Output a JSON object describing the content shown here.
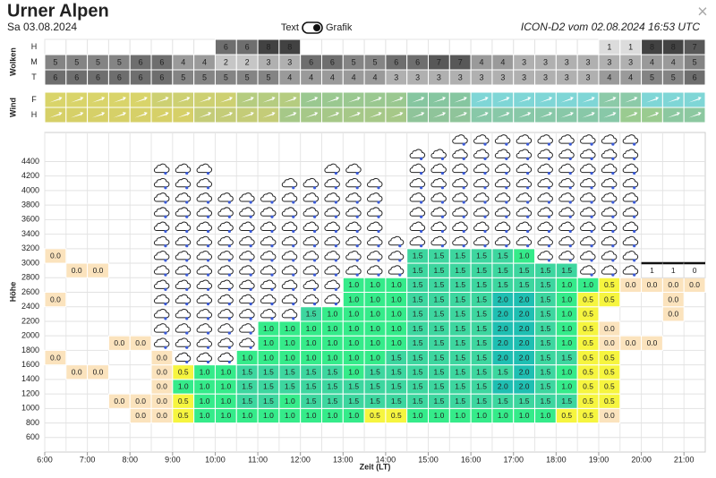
{
  "header": {
    "title": "Urner Alpen",
    "date": "Sa 03.08.2024",
    "toggle_left": "Text",
    "toggle_right": "Grafik",
    "model": "ICON-D2 vom 02.08.2024 16:53 UTC",
    "close": "×"
  },
  "clouds": {
    "label": "Wolken",
    "rows": [
      {
        "label": "H",
        "values": [
          null,
          null,
          null,
          null,
          null,
          null,
          null,
          null,
          6,
          6,
          8,
          8,
          null,
          null,
          null,
          null,
          null,
          null,
          null,
          null,
          null,
          null,
          null,
          null,
          null,
          null,
          1,
          1,
          8,
          8,
          7
        ]
      },
      {
        "label": "M",
        "values": [
          5,
          5,
          5,
          5,
          6,
          6,
          4,
          4,
          2,
          2,
          3,
          3,
          6,
          6,
          5,
          5,
          6,
          6,
          7,
          7,
          4,
          4,
          3,
          3,
          3,
          3,
          3,
          3,
          4,
          4,
          5
        ]
      },
      {
        "label": "T",
        "values": [
          6,
          6,
          6,
          6,
          6,
          6,
          5,
          5,
          5,
          5,
          5,
          4,
          4,
          4,
          4,
          4,
          3,
          3,
          3,
          3,
          3,
          3,
          3,
          3,
          3,
          3,
          4,
          4,
          5,
          5,
          6
        ]
      }
    ]
  },
  "wind": {
    "label": "Wind",
    "rows": [
      {
        "label": "F",
        "colors": [
          "#d9d46a",
          "#d9d46a",
          "#d9d46a",
          "#d9d46a",
          "#d9d46a",
          "#cdd072",
          "#cdd072",
          "#cdd072",
          "#cdd072",
          "#b5cc80",
          "#b5cc80",
          "#b5cc80",
          "#9ac890",
          "#9ac890",
          "#9ac890",
          "#9ac890",
          "#9ac890",
          "#86c6a0",
          "#86c6a0",
          "#86c6a0",
          "#7fd6d6",
          "#7fd6d6",
          "#7fd6d6",
          "#7fd6d6",
          "#7fd6d6",
          "#7fd6d6",
          "#8ccaa8",
          "#8ccaa8",
          "#7fd6d6",
          "#7fd6d6",
          "#7fd6d6"
        ]
      },
      {
        "label": "H",
        "colors": [
          "#d6d068",
          "#d6d068",
          "#d6d068",
          "#d6d068",
          "#d6d068",
          "#d6d068",
          "#d6d068",
          "#c4cc78",
          "#c4cc78",
          "#c4cc78",
          "#c4cc78",
          "#a6c888",
          "#a6c888",
          "#a6c888",
          "#a6c888",
          "#a6c888",
          "#a6c888",
          "#8fc49a",
          "#8fc49a",
          "#8fc49a",
          "#88c8a8",
          "#88c8a8",
          "#88c8a8",
          "#88c8a8",
          "#88c8a8",
          "#88c8a8",
          "#88c8a8",
          "#9acb90",
          "#9acb90",
          "#8cc8a0",
          "#8cc8a0"
        ]
      }
    ]
  },
  "thermal_chart": {
    "y_label": "Höhe",
    "x_label": "Zeit (LT)",
    "xlim": [
      6,
      21.5
    ],
    "ylim": [
      400,
      4800
    ],
    "xticks": [
      {
        "value": 6,
        "label": "6:00"
      },
      {
        "value": 7,
        "label": "7:00"
      },
      {
        "value": 8,
        "label": "8:00"
      },
      {
        "value": 9,
        "label": "9:00"
      },
      {
        "value": 10,
        "label": "10:00"
      },
      {
        "value": 11,
        "label": "11:00"
      },
      {
        "value": 12,
        "label": "12:00"
      },
      {
        "value": 13,
        "label": "13:00"
      },
      {
        "value": 14,
        "label": "14:00"
      },
      {
        "value": 15,
        "label": "15:00"
      },
      {
        "value": 16,
        "label": "16:00"
      },
      {
        "value": 17,
        "label": "17:00"
      },
      {
        "value": 18,
        "label": "18:00"
      },
      {
        "value": 19,
        "label": "19:00"
      },
      {
        "value": 20,
        "label": "20:00"
      },
      {
        "value": 21,
        "label": "21:00"
      }
    ],
    "yticks": [
      600,
      800,
      1000,
      1200,
      1400,
      1600,
      1800,
      2000,
      2200,
      2400,
      2600,
      2800,
      3000,
      3200,
      3400,
      3600,
      3800,
      4000,
      4200,
      4400
    ],
    "x": [
      6,
      6.5,
      7,
      7.5,
      8,
      8.5,
      9,
      9.5,
      10,
      10.5,
      11,
      11.5,
      12,
      12.5,
      13,
      13.5,
      14,
      14.5,
      15,
      15.5,
      16,
      16.5,
      17,
      17.5,
      18,
      18.5,
      19,
      19.5,
      20,
      20.5,
      21
    ],
    "levels": [
      800,
      1000,
      1200,
      1400,
      1600,
      1800,
      2000,
      2200,
      2400,
      2600,
      2800,
      3000,
      3200,
      3400,
      3600,
      3800,
      4000,
      4200,
      4400,
      4600
    ],
    "value_colors": {
      "0.0": "#fbe3bd",
      "0.5": "#f6f53f",
      "1.0": "#35eb8a",
      "1.5": "#3dd69f",
      "2.0": "#1fbfb2"
    },
    "thermals": [
      [
        null,
        null,
        null,
        null,
        "0.0",
        null,
        null,
        null,
        "0.0",
        null,
        null,
        "0.0"
      ],
      [
        null,
        null,
        null,
        "0.0",
        null,
        null,
        null,
        null,
        null,
        null,
        "0.0"
      ],
      [
        null,
        null,
        null,
        "0.0",
        null,
        null,
        null,
        null,
        null,
        null,
        "0.0"
      ],
      [
        null,
        "0.0",
        null,
        null,
        null,
        "0.0"
      ],
      [
        "0.0",
        "0.0",
        null,
        null,
        null,
        "0.0"
      ],
      [
        "0.0",
        "0.0",
        "0.0",
        "0.0",
        "0.0"
      ],
      [
        "0.5",
        "0.5",
        "1.0",
        "0.5"
      ],
      [
        "1.0",
        "1.0",
        "1.0",
        "1.0"
      ],
      [
        "1.0",
        "1.0",
        "1.0",
        "1.0"
      ],
      [
        "1.0",
        "1.5",
        "1.5",
        "1.5",
        "1.0"
      ],
      [
        "1.0",
        "1.5",
        "1.5",
        "1.5",
        "1.0",
        "1.0",
        "1.0"
      ],
      [
        "1.0",
        "1.0",
        "1.5",
        "1.5",
        "1.0",
        "1.0",
        "1.0"
      ],
      [
        "1.0",
        "1.5",
        "1.5",
        "1.5",
        "1.0",
        "1.0",
        "1.0",
        "1.5"
      ],
      [
        "1.0",
        "1.5",
        "1.5",
        "1.5",
        "1.0",
        "1.0",
        "1.0",
        "1.0"
      ],
      [
        "1.0",
        "1.5",
        "1.5",
        "1.0",
        "1.0",
        "1.0",
        "1.0",
        "1.0",
        "1.0",
        "1.0"
      ],
      [
        "0.5",
        "1.5",
        "1.5",
        "1.5",
        "1.0",
        "1.0",
        "1.0",
        "1.0",
        "1.0",
        "1.0"
      ],
      [
        "0.5",
        "1.5",
        "1.5",
        "1.5",
        "1.5",
        "1.0",
        "1.0",
        "1.0",
        "1.0",
        "1.0"
      ],
      [
        "1.0",
        "1.5",
        "1.5",
        "1.5",
        "1.5",
        "1.5",
        "1.5",
        "1.5",
        "1.5",
        "1.5",
        "1.5",
        "1.5"
      ],
      [
        "1.0",
        "1.5",
        "1.5",
        "1.5",
        "1.5",
        "1.5",
        "1.5",
        "1.5",
        "1.5",
        "1.5",
        "1.5",
        "1.5"
      ],
      [
        "1.0",
        "1.5",
        "1.5",
        "1.5",
        "1.5",
        "1.5",
        "1.5",
        "1.5",
        "1.5",
        "1.5",
        "1.5",
        "1.5"
      ],
      [
        "1.0",
        "1.5",
        "1.5",
        "1.5",
        "1.5",
        "1.5",
        "1.5",
        "1.5",
        "1.5",
        "1.5",
        "1.5",
        "1.5"
      ],
      [
        "1.0",
        "1.5",
        "2.0",
        "1.5",
        "2.0",
        "2.0",
        "2.0",
        "2.0",
        "2.0",
        "1.5",
        "1.5",
        "1.5"
      ],
      [
        "1.0",
        "1.5",
        "2.0",
        "2.0",
        "2.0",
        "2.0",
        "2.0",
        "2.0",
        "2.0",
        "1.5",
        "1.5",
        "1.0"
      ],
      [
        "1.0",
        "1.5",
        "1.5",
        "1.5",
        "1.5",
        "1.5",
        "1.5",
        "1.5",
        "1.5",
        "1.5",
        "1.5"
      ],
      [
        "0.5",
        "1.5",
        "1.0",
        "1.0",
        "1.5",
        "1.0",
        "1.0",
        "1.0",
        "1.0",
        "1.0",
        "1.5"
      ],
      [
        "0.5",
        "0.5",
        "0.5",
        "0.5",
        "0.5",
        "0.5",
        "0.5",
        "0.5",
        "0.5",
        "1.0"
      ],
      [
        "0.0",
        "0.5",
        "0.5",
        "0.5",
        "0.5",
        "0.0",
        "0.0",
        null,
        "0.5",
        "0.5"
      ],
      [
        null,
        null,
        null,
        null,
        null,
        "0.0",
        null,
        null,
        null,
        "0.0"
      ],
      [
        null,
        null,
        null,
        null,
        null,
        "0.0",
        null,
        null,
        null,
        "0.0"
      ],
      [
        null,
        null,
        null,
        null,
        null,
        null,
        null,
        "0.0",
        "0.0",
        "0.0"
      ],
      [
        null,
        null,
        null,
        null,
        null,
        null,
        null,
        null,
        null,
        "0.0"
      ]
    ],
    "cloud_base": [
      null,
      null,
      null,
      null,
      null,
      1800,
      1600,
      1600,
      1600,
      1800,
      2200,
      2200,
      2400,
      2400,
      2800,
      2800,
      2800,
      3200,
      3200,
      3200,
      3200,
      3200,
      3200,
      3000,
      3000,
      2800,
      2800,
      2800,
      null,
      null,
      null
    ],
    "cloud_top": [
      null,
      null,
      null,
      null,
      null,
      4400,
      4400,
      4400,
      4000,
      4000,
      4000,
      4200,
      4200,
      4400,
      4400,
      4200,
      3400,
      4600,
      4600,
      4800,
      4800,
      4800,
      4800,
      4800,
      4800,
      4800,
      4800,
      4800,
      null,
      null,
      null
    ],
    "markers": {
      "x": [
        20,
        20.5,
        21
      ],
      "alt": 2800,
      "values": [
        1,
        1,
        0
      ]
    }
  }
}
